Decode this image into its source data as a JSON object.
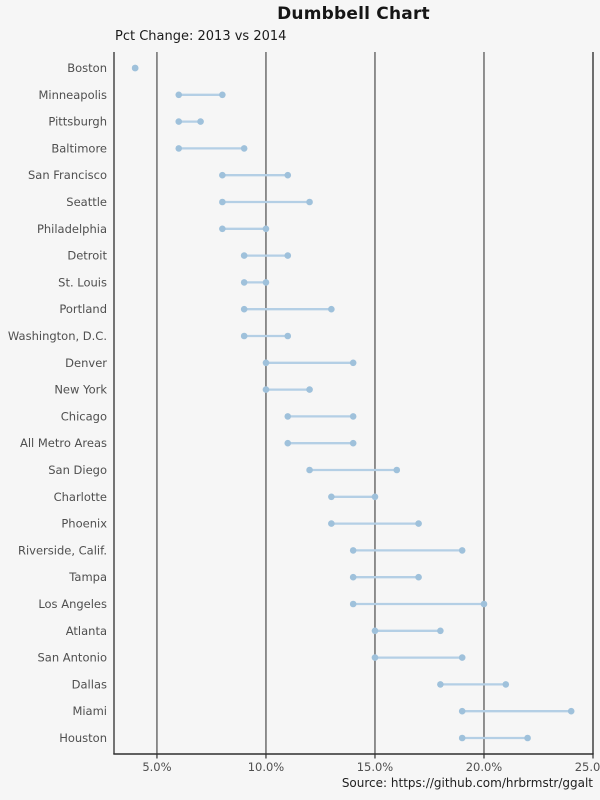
{
  "title": "Dumbbell Chart",
  "subtitle": "Pct Change: 2013 vs 2014",
  "source": "Source: https://github.com/hrbrmstr/ggalt",
  "colors": {
    "background": "#f6f6f6",
    "dot": "#9fc1db",
    "segment": "#b4cfe5",
    "gridline": "#3c3c3c",
    "axis_line": "#2f2f2f",
    "axis_text": "#4f4f4f",
    "label_text": "#4f4f4f"
  },
  "chart_data": {
    "type": "dumbbell",
    "title": "Dumbbell Chart",
    "subtitle": "Pct Change: 2013 vs 2014",
    "caption": "Source: https://github.com/hrbrmstr/ggalt",
    "orientation": "horizontal-rows",
    "x_unit": "percent",
    "xlim": [
      3,
      25
    ],
    "x_ticks": [
      5,
      10,
      15,
      20,
      25
    ],
    "x_tick_labels": [
      "5.0%",
      "10.0%",
      "15.0%",
      "20.0%",
      "25.0%"
    ],
    "grid": "vertical-major-only",
    "legend": "none",
    "series_names": [
      "2013",
      "2014"
    ],
    "rows": [
      {
        "city": "Boston",
        "start": 4,
        "end": 4
      },
      {
        "city": "Minneapolis",
        "start": 6,
        "end": 8
      },
      {
        "city": "Pittsburgh",
        "start": 6,
        "end": 7
      },
      {
        "city": "Baltimore",
        "start": 6,
        "end": 9
      },
      {
        "city": "San Francisco",
        "start": 8,
        "end": 11
      },
      {
        "city": "Seattle",
        "start": 8,
        "end": 12
      },
      {
        "city": "Philadelphia",
        "start": 8,
        "end": 10
      },
      {
        "city": "Detroit",
        "start": 9,
        "end": 11
      },
      {
        "city": "St. Louis",
        "start": 9,
        "end": 10
      },
      {
        "city": "Portland",
        "start": 9,
        "end": 13
      },
      {
        "city": "Washington, D.C.",
        "start": 9,
        "end": 11
      },
      {
        "city": "Denver",
        "start": 10,
        "end": 14
      },
      {
        "city": "New York",
        "start": 10,
        "end": 12
      },
      {
        "city": "Chicago",
        "start": 11,
        "end": 14
      },
      {
        "city": "All Metro Areas",
        "start": 11,
        "end": 14
      },
      {
        "city": "San Diego",
        "start": 12,
        "end": 16
      },
      {
        "city": "Charlotte",
        "start": 13,
        "end": 15
      },
      {
        "city": "Phoenix",
        "start": 13,
        "end": 17
      },
      {
        "city": "Riverside, Calif.",
        "start": 14,
        "end": 19
      },
      {
        "city": "Tampa",
        "start": 14,
        "end": 17
      },
      {
        "city": "Los Angeles",
        "start": 14,
        "end": 20
      },
      {
        "city": "Atlanta",
        "start": 15,
        "end": 18
      },
      {
        "city": "San Antonio",
        "start": 15,
        "end": 19
      },
      {
        "city": "Dallas",
        "start": 18,
        "end": 21
      },
      {
        "city": "Miami",
        "start": 19,
        "end": 24
      },
      {
        "city": "Houston",
        "start": 19,
        "end": 22
      }
    ]
  }
}
